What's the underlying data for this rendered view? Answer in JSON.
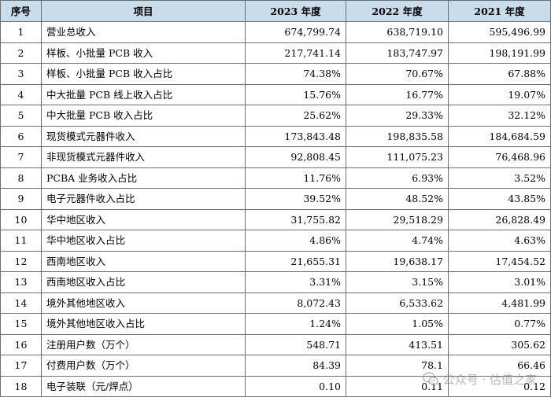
{
  "table": {
    "headers": [
      "序号",
      "项目",
      "2023 年度",
      "2022 年度",
      "2021 年度"
    ],
    "rows": [
      {
        "idx": "1",
        "item": "营业总收入",
        "y2023": "674,799.74",
        "y2022": "638,719.10",
        "y2021": "595,496.99"
      },
      {
        "idx": "2",
        "item": "样板、小批量 PCB 收入",
        "y2023": "217,741.14",
        "y2022": "183,747.97",
        "y2021": "198,191.99"
      },
      {
        "idx": "3",
        "item": "样板、小批量 PCB 收入占比",
        "y2023": "74.38%",
        "y2022": "70.67%",
        "y2021": "67.88%"
      },
      {
        "idx": "4",
        "item": "中大批量 PCB 线上收入占比",
        "y2023": "15.76%",
        "y2022": "16.77%",
        "y2021": "19.07%"
      },
      {
        "idx": "5",
        "item": "中大批量 PCB 收入占比",
        "y2023": "25.62%",
        "y2022": "29.33%",
        "y2021": "32.12%"
      },
      {
        "idx": "6",
        "item": "现货模式元器件收入",
        "y2023": "173,843.48",
        "y2022": "198,835.58",
        "y2021": "184,684.59"
      },
      {
        "idx": "7",
        "item": "非现货模式元器件收入",
        "y2023": "92,808.45",
        "y2022": "111,075.23",
        "y2021": "76,468.96"
      },
      {
        "idx": "8",
        "item": "PCBA 业务收入占比",
        "y2023": "11.76%",
        "y2022": "6.93%",
        "y2021": "3.52%"
      },
      {
        "idx": "9",
        "item": "电子元器件收入占比",
        "y2023": "39.52%",
        "y2022": "48.52%",
        "y2021": "43.85%"
      },
      {
        "idx": "10",
        "item": "华中地区收入",
        "y2023": "31,755.82",
        "y2022": "29,518.29",
        "y2021": "26,828.49"
      },
      {
        "idx": "11",
        "item": "华中地区收入占比",
        "y2023": "4.86%",
        "y2022": "4.74%",
        "y2021": "4.63%"
      },
      {
        "idx": "12",
        "item": "西南地区收入",
        "y2023": "21,655.31",
        "y2022": "19,638.17",
        "y2021": "17,454.52"
      },
      {
        "idx": "13",
        "item": "西南地区收入占比",
        "y2023": "3.31%",
        "y2022": "3.15%",
        "y2021": "3.01%"
      },
      {
        "idx": "14",
        "item": "境外其他地区收入",
        "y2023": "8,072.43",
        "y2022": "6,533.62",
        "y2021": "4,481.99"
      },
      {
        "idx": "15",
        "item": "境外其他地区收入占比",
        "y2023": "1.24%",
        "y2022": "1.05%",
        "y2021": "0.77%"
      },
      {
        "idx": "16",
        "item": "注册用户数（万个）",
        "y2023": "548.71",
        "y2022": "413.51",
        "y2021": "305.62"
      },
      {
        "idx": "17",
        "item": "付费用户数（万个）",
        "y2023": "84.39",
        "y2022": "78.1",
        "y2021": "66.46"
      },
      {
        "idx": "18",
        "item": "电子装联（元/焊点）",
        "y2023": "0.10",
        "y2022": "0.11",
        "y2021": "0.12"
      }
    ]
  },
  "watermark": {
    "text": "公众号 · 估值之家",
    "icon": "wechat-icon"
  }
}
